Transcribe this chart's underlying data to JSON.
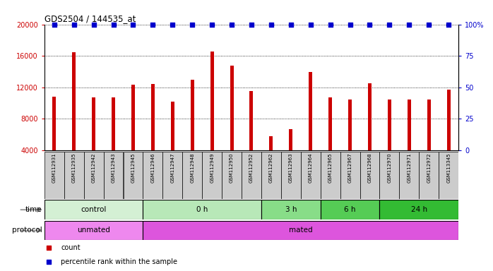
{
  "title": "GDS2504 / 144535_at",
  "samples": [
    "GSM112931",
    "GSM112935",
    "GSM112942",
    "GSM112943",
    "GSM112945",
    "GSM112946",
    "GSM112947",
    "GSM112948",
    "GSM112949",
    "GSM112950",
    "GSM112952",
    "GSM112962",
    "GSM112963",
    "GSM112964",
    "GSM112965",
    "GSM112967",
    "GSM112968",
    "GSM112970",
    "GSM112971",
    "GSM112972",
    "GSM113345"
  ],
  "counts": [
    10800,
    16500,
    10700,
    10700,
    12300,
    12400,
    10200,
    13000,
    16600,
    14800,
    11500,
    5800,
    6700,
    14000,
    10700,
    10500,
    12500,
    10500,
    10500,
    10500,
    11700
  ],
  "bar_color": "#cc0000",
  "dot_color": "#0000cc",
  "ylim_left": [
    4000,
    20000
  ],
  "ylim_right": [
    0,
    100
  ],
  "yticks_left": [
    4000,
    8000,
    12000,
    16000,
    20000
  ],
  "yticks_right": [
    0,
    25,
    50,
    75,
    100
  ],
  "time_groups": [
    {
      "label": "control",
      "start": 0,
      "end": 5,
      "color": "#d4f0d4"
    },
    {
      "label": "0 h",
      "start": 5,
      "end": 11,
      "color": "#b8e8b8"
    },
    {
      "label": "3 h",
      "start": 11,
      "end": 14,
      "color": "#88dd88"
    },
    {
      "label": "6 h",
      "start": 14,
      "end": 17,
      "color": "#55cc55"
    },
    {
      "label": "24 h",
      "start": 17,
      "end": 21,
      "color": "#33bb33"
    }
  ],
  "protocol_groups": [
    {
      "label": "unmated",
      "start": 0,
      "end": 5,
      "color": "#ee88ee"
    },
    {
      "label": "mated",
      "start": 5,
      "end": 21,
      "color": "#dd55dd"
    }
  ],
  "tick_label_color": "#cc0000",
  "right_tick_color": "#0000cc",
  "xtick_bg_color": "#cccccc",
  "label_time": "time",
  "label_protocol": "protocol",
  "legend_count_label": "count",
  "legend_pct_label": "percentile rank within the sample"
}
